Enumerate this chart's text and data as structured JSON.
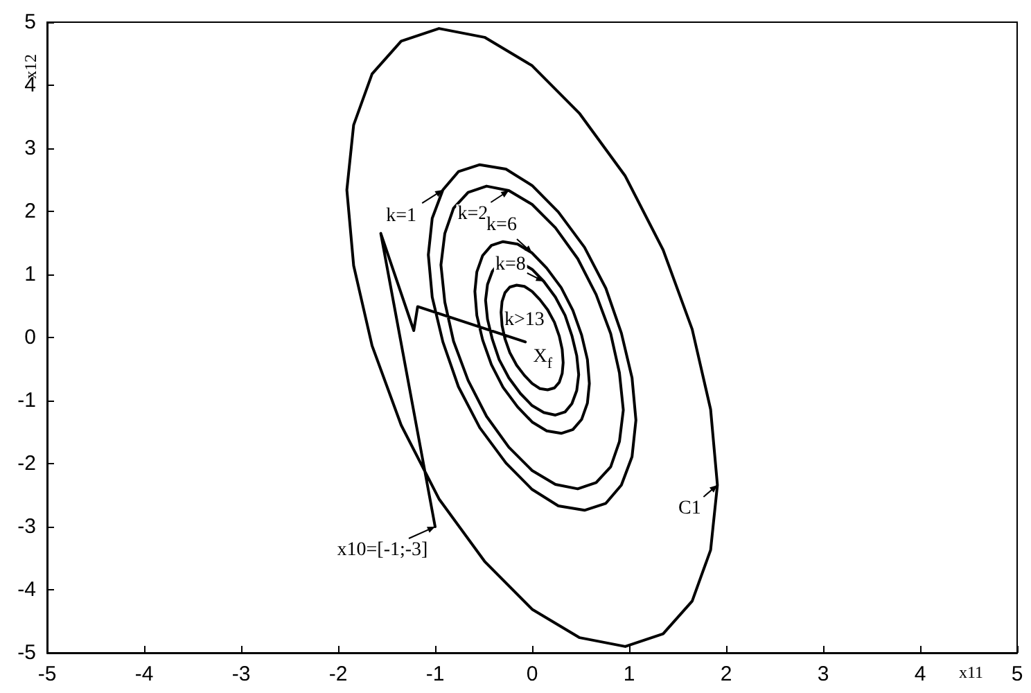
{
  "chart_data": {
    "type": "line",
    "xlabel": "x11",
    "ylabel": "x12",
    "xlim": [
      -5,
      5
    ],
    "ylim": [
      -5,
      5
    ],
    "xticks": [
      -5,
      -4,
      -3,
      -2,
      -1,
      0,
      1,
      2,
      3,
      4,
      5
    ],
    "yticks": [
      -5,
      -4,
      -3,
      -2,
      -1,
      0,
      1,
      2,
      3,
      4,
      5
    ],
    "grid": false,
    "marker": "none",
    "line_style": "solid",
    "x": [
      -1.91,
      -1.84,
      -1.65,
      -1.35,
      -0.96,
      -0.49,
      0,
      0.49,
      0.96,
      1.35,
      1.65,
      1.84,
      1.91,
      null,
      -1.91,
      -1.84,
      -1.65,
      -1.35,
      -0.96,
      -0.49,
      0,
      0.49,
      0.96,
      1.35,
      1.65,
      1.84,
      1.91,
      null,
      -1.07,
      -1.03,
      -0.92,
      -0.76,
      -0.54,
      -0.27,
      0,
      0.27,
      0.54,
      0.76,
      0.92,
      1.03,
      1.07,
      null,
      -1.07,
      -1.03,
      -0.92,
      -0.76,
      -0.54,
      -0.27,
      0,
      0.27,
      0.54,
      0.76,
      0.92,
      1.03,
      1.07,
      null,
      -0.94,
      -0.9,
      -0.81,
      -0.66,
      -0.47,
      -0.24,
      0,
      0.24,
      0.47,
      0.66,
      0.81,
      0.9,
      0.94,
      null,
      -0.94,
      -0.9,
      -0.81,
      -0.66,
      -0.47,
      -0.24,
      0,
      0.24,
      0.47,
      0.66,
      0.81,
      0.9,
      0.94,
      null,
      -0.59,
      -0.57,
      -0.51,
      -0.42,
      -0.3,
      -0.15,
      0,
      0.15,
      0.3,
      0.42,
      0.51,
      0.57,
      0.59,
      null,
      -0.59,
      -0.57,
      -0.51,
      -0.42,
      -0.3,
      -0.15,
      0,
      0.15,
      0.3,
      0.42,
      0.51,
      0.57,
      0.59,
      null,
      -0.48,
      -0.46,
      -0.41,
      -0.34,
      -0.24,
      -0.12,
      0,
      0.12,
      0.24,
      0.34,
      0.41,
      0.46,
      0.48,
      null,
      -0.48,
      -0.46,
      -0.41,
      -0.34,
      -0.24,
      -0.12,
      0,
      0.12,
      0.24,
      0.34,
      0.41,
      0.46,
      0.48,
      null,
      -0.32,
      -0.31,
      -0.28,
      -0.23,
      -0.16,
      -0.08,
      0,
      0.08,
      0.16,
      0.23,
      0.28,
      0.31,
      0.32,
      null,
      -0.32,
      -0.31,
      -0.28,
      -0.23,
      -0.16,
      -0.08,
      0,
      0.08,
      0.16,
      0.23,
      0.28,
      0.31,
      0.32,
      null,
      -1.56,
      -1,
      null,
      -1.56,
      -1.22,
      -1.18,
      -0.07
    ],
    "series": [
      {
        "color": "#000000",
        "values": [
          2.34,
          1.14,
          -0.13,
          -1.39,
          -2.56,
          -3.55,
          -4.31,
          -4.76,
          -4.9,
          -4.7,
          -4.18,
          -3.37,
          -2.34,
          null,
          2.34,
          3.37,
          4.18,
          4.7,
          4.9,
          4.76,
          4.31,
          3.55,
          2.56,
          1.39,
          0.13,
          -1.14,
          -2.34,
          null,
          1.31,
          0.64,
          -0.07,
          -0.78,
          -1.43,
          -1.99,
          -2.41,
          -2.67,
          -2.74,
          -2.63,
          -2.34,
          -1.89,
          -1.31,
          null,
          1.31,
          1.89,
          2.34,
          2.63,
          2.74,
          2.67,
          2.41,
          1.99,
          1.43,
          0.78,
          0.07,
          -0.64,
          -1.31,
          null,
          1.15,
          0.56,
          -0.06,
          -0.68,
          -1.25,
          -1.74,
          -2.11,
          -2.33,
          -2.4,
          -2.3,
          -2.05,
          -1.65,
          -1.15,
          null,
          1.15,
          1.65,
          2.05,
          2.3,
          2.4,
          2.33,
          2.11,
          1.74,
          1.25,
          0.68,
          0.06,
          -0.56,
          -1.15,
          null,
          0.73,
          0.35,
          -0.04,
          -0.43,
          -0.79,
          -1.1,
          -1.34,
          -1.48,
          -1.52,
          -1.46,
          -1.3,
          -1.04,
          -0.73,
          null,
          0.73,
          1.04,
          1.3,
          1.46,
          1.52,
          1.48,
          1.34,
          1.1,
          0.79,
          0.43,
          0.04,
          -0.35,
          -0.73,
          null,
          0.59,
          0.29,
          -0.03,
          -0.35,
          -0.64,
          -0.89,
          -1.08,
          -1.19,
          -1.23,
          -1.18,
          -1.05,
          -0.84,
          -0.59,
          null,
          0.59,
          0.84,
          1.05,
          1.18,
          1.23,
          1.19,
          1.08,
          0.89,
          0.64,
          0.35,
          0.03,
          -0.29,
          -0.59,
          null,
          0.4,
          0.19,
          -0.02,
          -0.24,
          -0.44,
          -0.6,
          -0.73,
          -0.81,
          -0.83,
          -0.8,
          -0.71,
          -0.57,
          -0.4,
          null,
          0.4,
          0.57,
          0.71,
          0.8,
          0.83,
          0.81,
          0.73,
          0.6,
          0.44,
          0.24,
          0.02,
          -0.19,
          -0.4,
          null,
          1.65,
          -3,
          null,
          1.65,
          0.11,
          0.49,
          -0.07
        ]
      }
    ],
    "annotations": [
      {
        "text": "k=1",
        "x": -0.92,
        "y": 2.34
      },
      {
        "text": "k=2",
        "x": -0.24,
        "y": 2.33
      },
      {
        "text": "k=6",
        "x": 0,
        "y": 1.34
      },
      {
        "text": "k=8",
        "x": 0.12,
        "y": 0.89
      },
      "k>13",
      "X$_{f}$",
      {
        "text": "C1",
        "x": 1.91,
        "y": -2.34
      },
      {
        "text": "x10=[-1;-3]",
        "x": -1,
        "y": -3
      }
    ]
  }
}
